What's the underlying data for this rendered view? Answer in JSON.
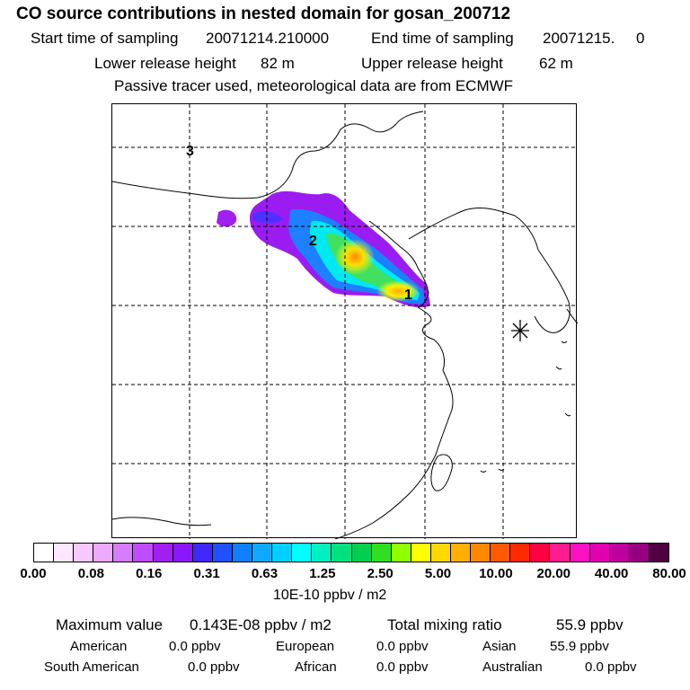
{
  "header": {
    "title": "CO  source contributions in nested domain for gosan_200712",
    "start_label": "Start time of sampling",
    "start_value": "20071214.210000",
    "end_label": "End time of sampling",
    "end_value": "20071215.     0",
    "lower_label": "Lower release height",
    "lower_value": "82 m",
    "upper_label": "Upper release height",
    "upper_value": "62 m",
    "note": "Passive tracer used, meteorological data are from ECMWF"
  },
  "map": {
    "markers": [
      "1",
      "2",
      "3"
    ],
    "receptor_icon": "asterisk-star-icon"
  },
  "colorbar": {
    "colors": [
      "#ffffff",
      "#fde6ff",
      "#f6c8ff",
      "#eeaaff",
      "#d67cff",
      "#c04cff",
      "#a020f0",
      "#8a18ff",
      "#4028ff",
      "#2050ff",
      "#1080ff",
      "#10a8ff",
      "#00d0ff",
      "#00ffff",
      "#00f0c0",
      "#00e080",
      "#00d050",
      "#30e020",
      "#90ff00",
      "#ffff00",
      "#ffd800",
      "#ffb000",
      "#ff8800",
      "#ff5a00",
      "#ff2a00",
      "#ff0040",
      "#ff1c8c",
      "#ff10c0",
      "#e000b0",
      "#c0009c",
      "#960080",
      "#500040"
    ],
    "tick_labels": [
      "0.00",
      "0.08",
      "0.16",
      "0.31",
      "0.63",
      "1.25",
      "2.50",
      "5.00",
      "10.00",
      "20.00",
      "40.00",
      "80.00"
    ],
    "unit": "10E-10 ppbv / m2"
  },
  "stats": {
    "max_label": "Maximum value",
    "max_value": "0.143E-08 ppbv / m2",
    "total_label": "Total mixing ratio",
    "total_value": "55.9 ppbv",
    "american_label": "American",
    "american_value": "0.0 ppbv",
    "european_label": "European",
    "european_value": "0.0 ppbv",
    "asian_label": "Asian",
    "asian_value": "55.9 ppbv",
    "south_american_label": "South American",
    "south_american_value": "0.0 ppbv",
    "african_label": "African",
    "african_value": "0.0 ppbv",
    "australian_label": "Australian",
    "australian_value": "0.0 ppbv"
  }
}
